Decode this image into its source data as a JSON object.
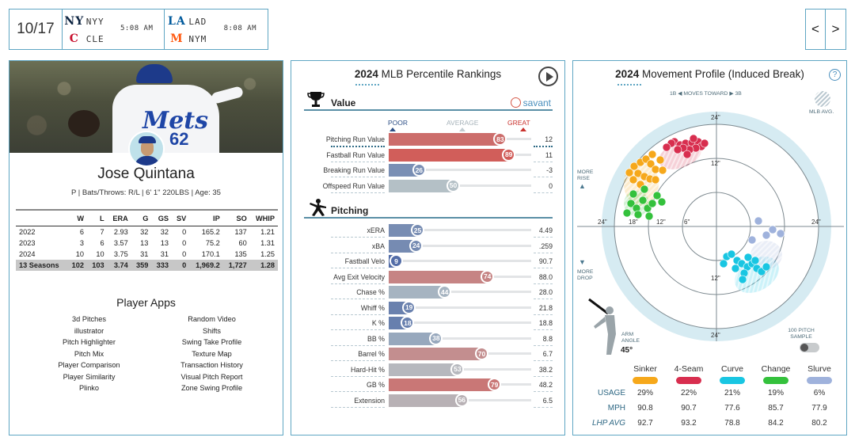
{
  "scoreboard": {
    "date": "10/17",
    "games": [
      {
        "away": "NYY",
        "home": "CLE",
        "time": "5:08 AM",
        "away_color": "#0c2340",
        "home_color": "#c8102e",
        "away_logo": "NY",
        "home_logo": "C"
      },
      {
        "away": "LAD",
        "home": "NYM",
        "time": "8:08 AM",
        "away_color": "#005a9c",
        "home_color": "#ff5910",
        "away_logo": "LA",
        "home_logo": "M"
      }
    ],
    "prev_label": "<",
    "next_label": ">"
  },
  "player": {
    "name": "Jose Quintana",
    "info": "P | Bats/Throws: R/L | 6' 1\" 220LBS | Age: 35",
    "hero_jersey_text": "Mets",
    "hero_number": "62",
    "stats": {
      "headers": [
        "",
        "W",
        "L",
        "ERA",
        "G",
        "GS",
        "SV",
        "IP",
        "SO",
        "WHIP"
      ],
      "rows": [
        [
          "2022",
          "6",
          "7",
          "2.93",
          "32",
          "32",
          "0",
          "165.2",
          "137",
          "1.21"
        ],
        [
          "2023",
          "3",
          "6",
          "3.57",
          "13",
          "13",
          "0",
          "75.2",
          "60",
          "1.31"
        ],
        [
          "2024",
          "10",
          "10",
          "3.75",
          "31",
          "31",
          "0",
          "170.1",
          "135",
          "1.25"
        ]
      ],
      "total": [
        "13 Seasons",
        "102",
        "103",
        "3.74",
        "359",
        "333",
        "0",
        "1,969.2",
        "1,727",
        "1.28"
      ]
    },
    "apps_title": "Player Apps",
    "apps": [
      "3d Pitches",
      "Random Video",
      "illustrator",
      "Shifts",
      "Pitch Highlighter",
      "Swing Take Profile",
      "Pitch Mix",
      "Texture Map",
      "Player Comparison",
      "Transaction History",
      "Player Similarity",
      "Visual Pitch Report",
      "Plinko",
      "Zone Swing Profile"
    ]
  },
  "percentiles": {
    "title_year": "2024",
    "title_rest": " MLB Percentile Rankings",
    "savant": "savant",
    "scale": {
      "poor": "POOR",
      "average": "AVERAGE",
      "great": "GREAT"
    },
    "value_section": "Value",
    "pitching_section": "Pitching",
    "value_rows": [
      {
        "label": "Pitching Run Value",
        "pct": 83,
        "value": "12",
        "highlight": true
      },
      {
        "label": "Fastball Run Value",
        "pct": 89,
        "value": "11",
        "highlight": false
      },
      {
        "label": "Breaking Run Value",
        "pct": 26,
        "value": "-3",
        "highlight": false
      },
      {
        "label": "Offspeed Run Value",
        "pct": 50,
        "value": "0",
        "highlight": false
      }
    ],
    "pitching_rows": [
      {
        "label": "xERA",
        "pct": 25,
        "value": "4.49"
      },
      {
        "label": "xBA",
        "pct": 24,
        "value": ".259"
      },
      {
        "label": "Fastball Velo",
        "pct": 9,
        "value": "90.7"
      },
      {
        "label": "Avg Exit Velocity",
        "pct": 74,
        "value": "88.0"
      },
      {
        "label": "Chase %",
        "pct": 44,
        "value": "28.0"
      },
      {
        "label": "Whiff %",
        "pct": 19,
        "value": "21.8"
      },
      {
        "label": "K %",
        "pct": 18,
        "value": "18.8"
      },
      {
        "label": "BB %",
        "pct": 38,
        "value": "8.8"
      },
      {
        "label": "Barrel %",
        "pct": 70,
        "value": "6.7"
      },
      {
        "label": "Hard-Hit %",
        "pct": 53,
        "value": "38.2"
      },
      {
        "label": "GB %",
        "pct": 79,
        "value": "48.2"
      },
      {
        "label": "Extension",
        "pct": 56,
        "value": "6.5"
      }
    ]
  },
  "movement": {
    "title_year": "2024",
    "title_rest": " Movement Profile (Induced Break)",
    "help": "?",
    "moves_toward": "1B ◀ MOVES TOWARD ▶ 3B",
    "mlb_avg": "MLB AVG.",
    "more_rise": "MORE RISE",
    "more_drop": "MORE DROP",
    "arm_angle_label": "ARM ANGLE",
    "arm_angle": "45°",
    "sample_label": "100 PITCH SAMPLE",
    "ring_labels": [
      "24\"",
      "12\"",
      "24\"",
      "18\"",
      "12\"",
      "6\"",
      "24\"",
      "12\"",
      "24\""
    ],
    "pitch_types": [
      {
        "name": "Sinker",
        "color": "#f6a81b",
        "usage": "29%",
        "mph": "90.8",
        "lhp_avg": "92.7"
      },
      {
        "name": "4-Seam",
        "color": "#d82e4f",
        "usage": "22%",
        "mph": "90.7",
        "lhp_avg": "93.2"
      },
      {
        "name": "Curve",
        "color": "#19c6e2",
        "usage": "21%",
        "mph": "77.6",
        "lhp_avg": "78.8"
      },
      {
        "name": "Change",
        "color": "#34c13c",
        "usage": "19%",
        "mph": "85.7",
        "lhp_avg": "84.2"
      },
      {
        "name": "Slurve",
        "color": "#9fb2dc",
        "usage": "6%",
        "mph": "77.9",
        "lhp_avg": "80.2"
      }
    ],
    "row_labels": {
      "usage": "USAGE",
      "mph": "MPH",
      "lhp_avg": "LHP AVG"
    }
  },
  "colors": {
    "border": "#5fa6c3",
    "great": "#d9423c",
    "poor": "#3c5a9a",
    "avg": "#a9b9c0"
  }
}
